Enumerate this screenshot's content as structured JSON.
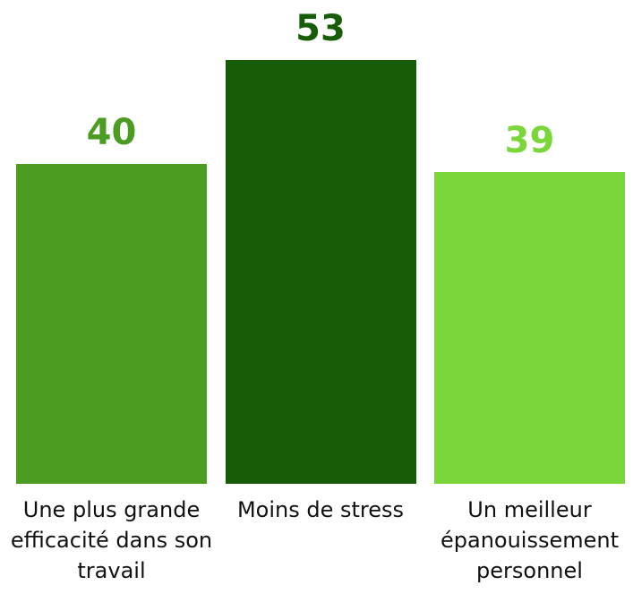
{
  "chart_data": {
    "type": "bar",
    "categories": [
      "Une plus grande efficacité dans son travail",
      "Moins de stress",
      "Un meilleur épanouissement personnel"
    ],
    "values": [
      40,
      53,
      39
    ],
    "colors": [
      "#4c9c22",
      "#175c07",
      "#7ad63a"
    ]
  }
}
